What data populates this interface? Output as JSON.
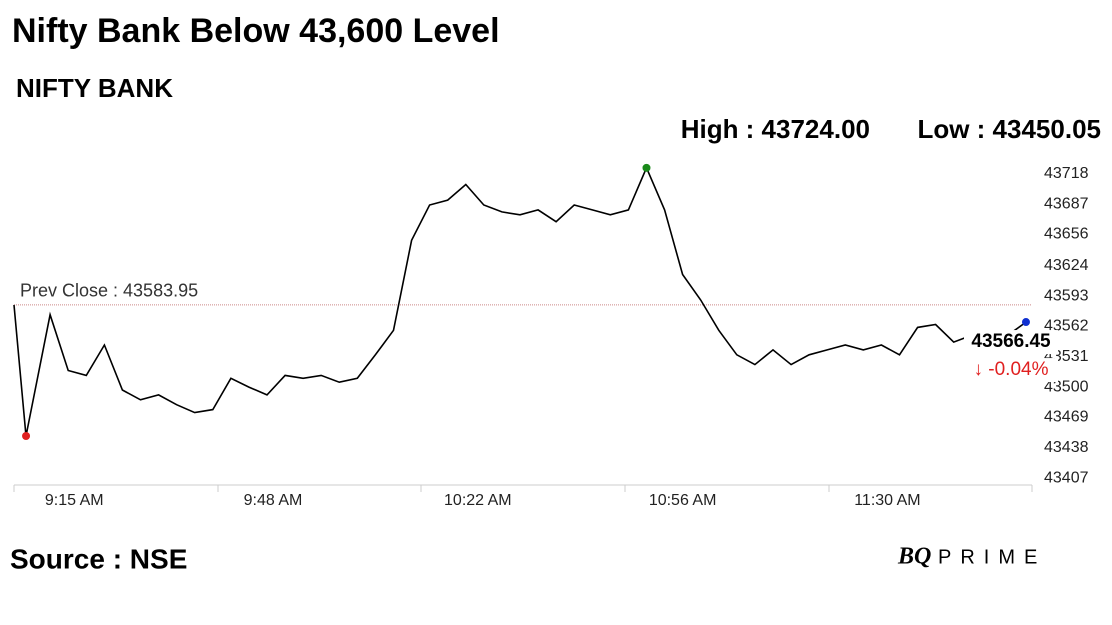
{
  "chart_data": {
    "type": "line",
    "title": "Nifty Bank Below 43,600 Level",
    "subtitle": "NIFTY BANK",
    "high_label": "High : 43724.00",
    "low_label": "Low : 43450.05",
    "x": [
      -10,
      -8,
      -4,
      -1,
      2,
      5,
      8,
      11,
      14,
      17,
      20,
      23,
      26,
      29,
      32,
      35,
      38,
      41,
      44,
      47,
      50,
      53,
      56,
      59,
      62,
      65,
      68,
      71,
      74,
      77,
      80,
      83,
      86,
      89,
      92,
      95,
      98,
      101,
      104,
      107,
      110,
      113,
      116,
      119,
      122,
      125,
      128,
      131,
      134,
      137,
      140,
      143,
      146,
      149,
      152,
      155,
      158
    ],
    "values": [
      43584,
      43450.05,
      43574,
      43517,
      43512,
      43543,
      43497,
      43487,
      43492,
      43482,
      43474,
      43477,
      43509,
      43500,
      43492,
      43512,
      43509,
      43512,
      43505,
      43509,
      43533,
      43558,
      43650,
      43686,
      43691,
      43707,
      43686,
      43679,
      43676,
      43681,
      43669,
      43686,
      43681,
      43676,
      43681,
      43724,
      43681,
      43615,
      43589,
      43558,
      43533,
      43523,
      43538,
      43523,
      43533,
      43538,
      43543,
      43538,
      43543,
      43533,
      43561,
      43564,
      43546,
      43553,
      43550,
      43553,
      43566.45
    ],
    "color": "#000000",
    "low_color": "#e02020",
    "high_color": "#1a8a1a",
    "last_color": "#1030d0",
    "prev_close": {
      "value": 43583.95,
      "label": "Prev Close : 43583.95"
    },
    "last_label": "43566.45",
    "change": {
      "value": -0.04,
      "label": "↓ -0.04%"
    },
    "change_color": "#e02020",
    "xlim": [
      -10,
      159
    ],
    "ylim": [
      43400,
      43732
    ],
    "xticks": [
      {
        "value": 0,
        "label": "9:15 AM"
      },
      {
        "value": 33,
        "label": "9:48 AM"
      },
      {
        "value": 67,
        "label": "10:22 AM"
      },
      {
        "value": 101,
        "label": "10:56 AM"
      },
      {
        "value": 135,
        "label": "11:30 AM"
      }
    ],
    "yticks": [
      43407,
      43438,
      43469,
      43500,
      43531,
      43562,
      43593,
      43624,
      43656,
      43687,
      43718
    ],
    "source": "Source : NSE",
    "brand_bq": "BQ",
    "brand_rest": "PRIME"
  }
}
